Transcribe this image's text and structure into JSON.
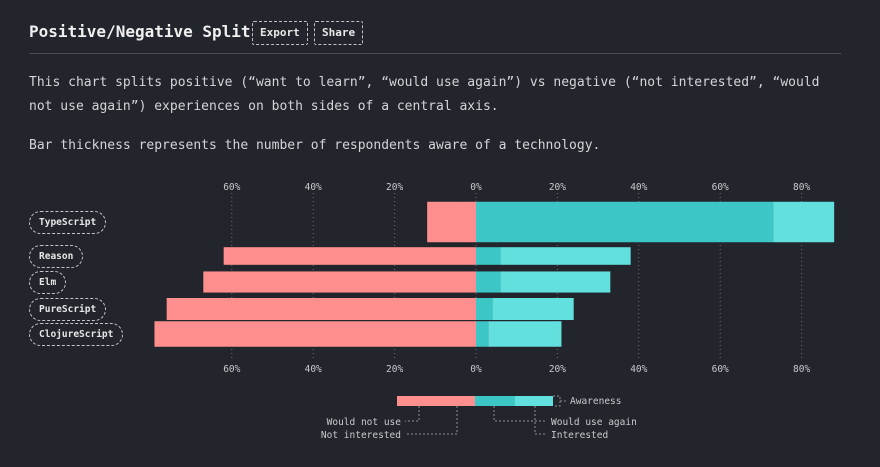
{
  "header": {
    "title": "Positive/Negative Split",
    "export_label": "Export",
    "share_label": "Share"
  },
  "description": {
    "line1": "This chart splits positive (“want to learn”, “would use again”) vs negative (“not interested”, “would",
    "line2": "not use again”) experiences on both sides of a central axis.",
    "line3": "Bar thickness represents the number of respondents aware of a technology."
  },
  "colors": {
    "negative": "#ff8f8f",
    "positive_dark": "#3cc6c6",
    "positive_light": "#62e0dd",
    "background": "#22252b"
  },
  "chart_data": {
    "type": "bar",
    "orientation": "horizontal-diverging",
    "axis_ticks": [
      "60%",
      "40%",
      "20%",
      "0%",
      "20%",
      "40%",
      "60%",
      "80%"
    ],
    "tick_values": [
      -60,
      -40,
      -20,
      0,
      20,
      40,
      60,
      80
    ],
    "xlim": [
      -80,
      88
    ],
    "categories": [
      "TypeScript",
      "Reason",
      "Elm",
      "PureScript",
      "ClojureScript"
    ],
    "series": [
      {
        "name": "Would not use",
        "values": [
          12,
          0,
          0,
          0,
          0
        ]
      },
      {
        "name": "Not interested",
        "values": [
          0,
          62,
          67,
          76,
          79
        ]
      },
      {
        "name": "Would use again",
        "values": [
          73,
          0,
          0,
          0,
          0
        ]
      },
      {
        "name": "Interested",
        "values": [
          15,
          38,
          33,
          24,
          21
        ]
      }
    ],
    "positive_split": [
      73,
      6,
      6,
      4,
      3
    ],
    "awareness": [
      92,
      40,
      48,
      50,
      58
    ],
    "legend": {
      "awareness": "Awareness",
      "would_not_use": "Would not use",
      "not_interested": "Not interested",
      "would_use_again": "Would use again",
      "interested": "Interested"
    }
  }
}
